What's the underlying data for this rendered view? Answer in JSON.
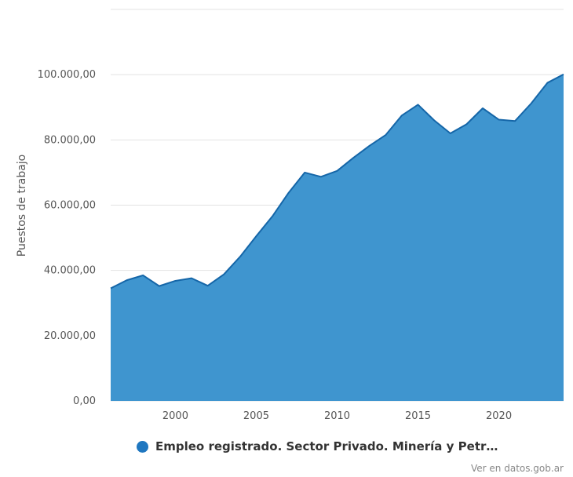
{
  "chart_data": {
    "type": "area",
    "title": "",
    "xlabel": "",
    "ylabel": "Puestos de trabajo",
    "x": [
      1996,
      1997,
      1998,
      1999,
      2000,
      2001,
      2002,
      2003,
      2004,
      2005,
      2006,
      2007,
      2008,
      2009,
      2010,
      2011,
      2012,
      2013,
      2014,
      2015,
      2016,
      2017,
      2018,
      2019,
      2020,
      2021,
      2022,
      2023,
      2024
    ],
    "series": [
      {
        "name": "Empleo registrado. Sector Privado. Minería y Petr…",
        "color": "#1f77c0",
        "values": [
          34500,
          37000,
          38500,
          35200,
          36800,
          37600,
          35300,
          38800,
          44200,
          50500,
          56600,
          63800,
          70000,
          68700,
          70500,
          74500,
          78200,
          81500,
          87500,
          90800,
          86000,
          82000,
          84800,
          89700,
          86200,
          85800,
          91200,
          97500,
          100100
        ]
      }
    ],
    "xticks": [
      "2000",
      "2005",
      "2010",
      "2015",
      "2020"
    ],
    "yticks": [
      "0,00",
      "20.000,00",
      "40.000,00",
      "60.000,00",
      "80.000,00",
      "100.000,00"
    ],
    "ylim": [
      0,
      120000
    ],
    "grid": true,
    "legend_position": "bottom",
    "fill_color": "#3f95cf",
    "line_color": "#1566a8"
  },
  "credit": "Ver en datos.gob.ar"
}
